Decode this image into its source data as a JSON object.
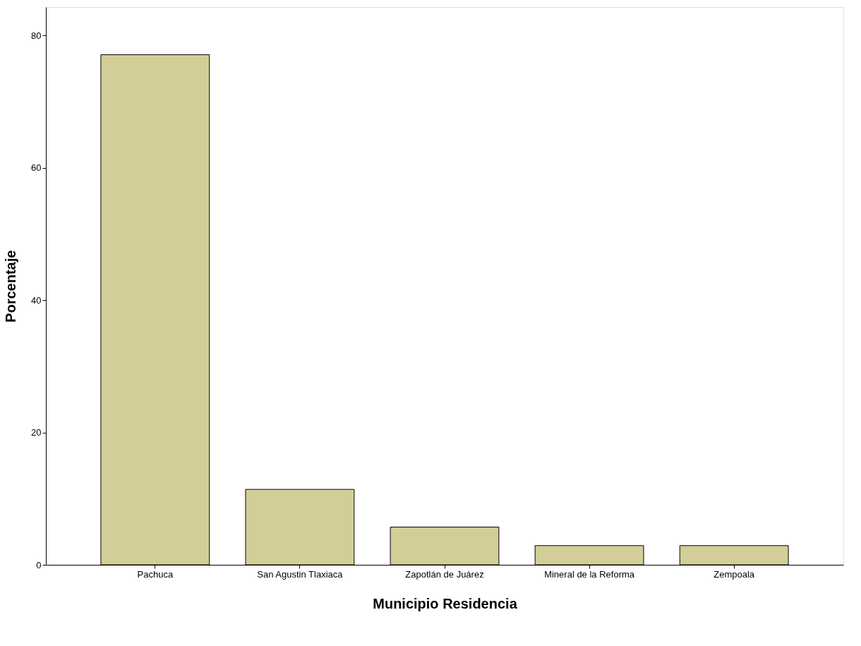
{
  "chart_data": {
    "type": "bar",
    "categories": [
      "Pachuca",
      "San Agustin Tlaxiaca",
      "Zapotlán de Juárez",
      "Mineral de la Reforma",
      "Zempoala"
    ],
    "values": [
      77.1,
      11.4,
      5.7,
      2.9,
      2.9
    ],
    "color": "#d3ce97",
    "xlabel": "Municipio Residencia",
    "ylabel": "Porcentaje",
    "ylim": [
      0,
      84.3
    ],
    "yticks": [
      0,
      20,
      40,
      60,
      80
    ],
    "grid": false
  }
}
